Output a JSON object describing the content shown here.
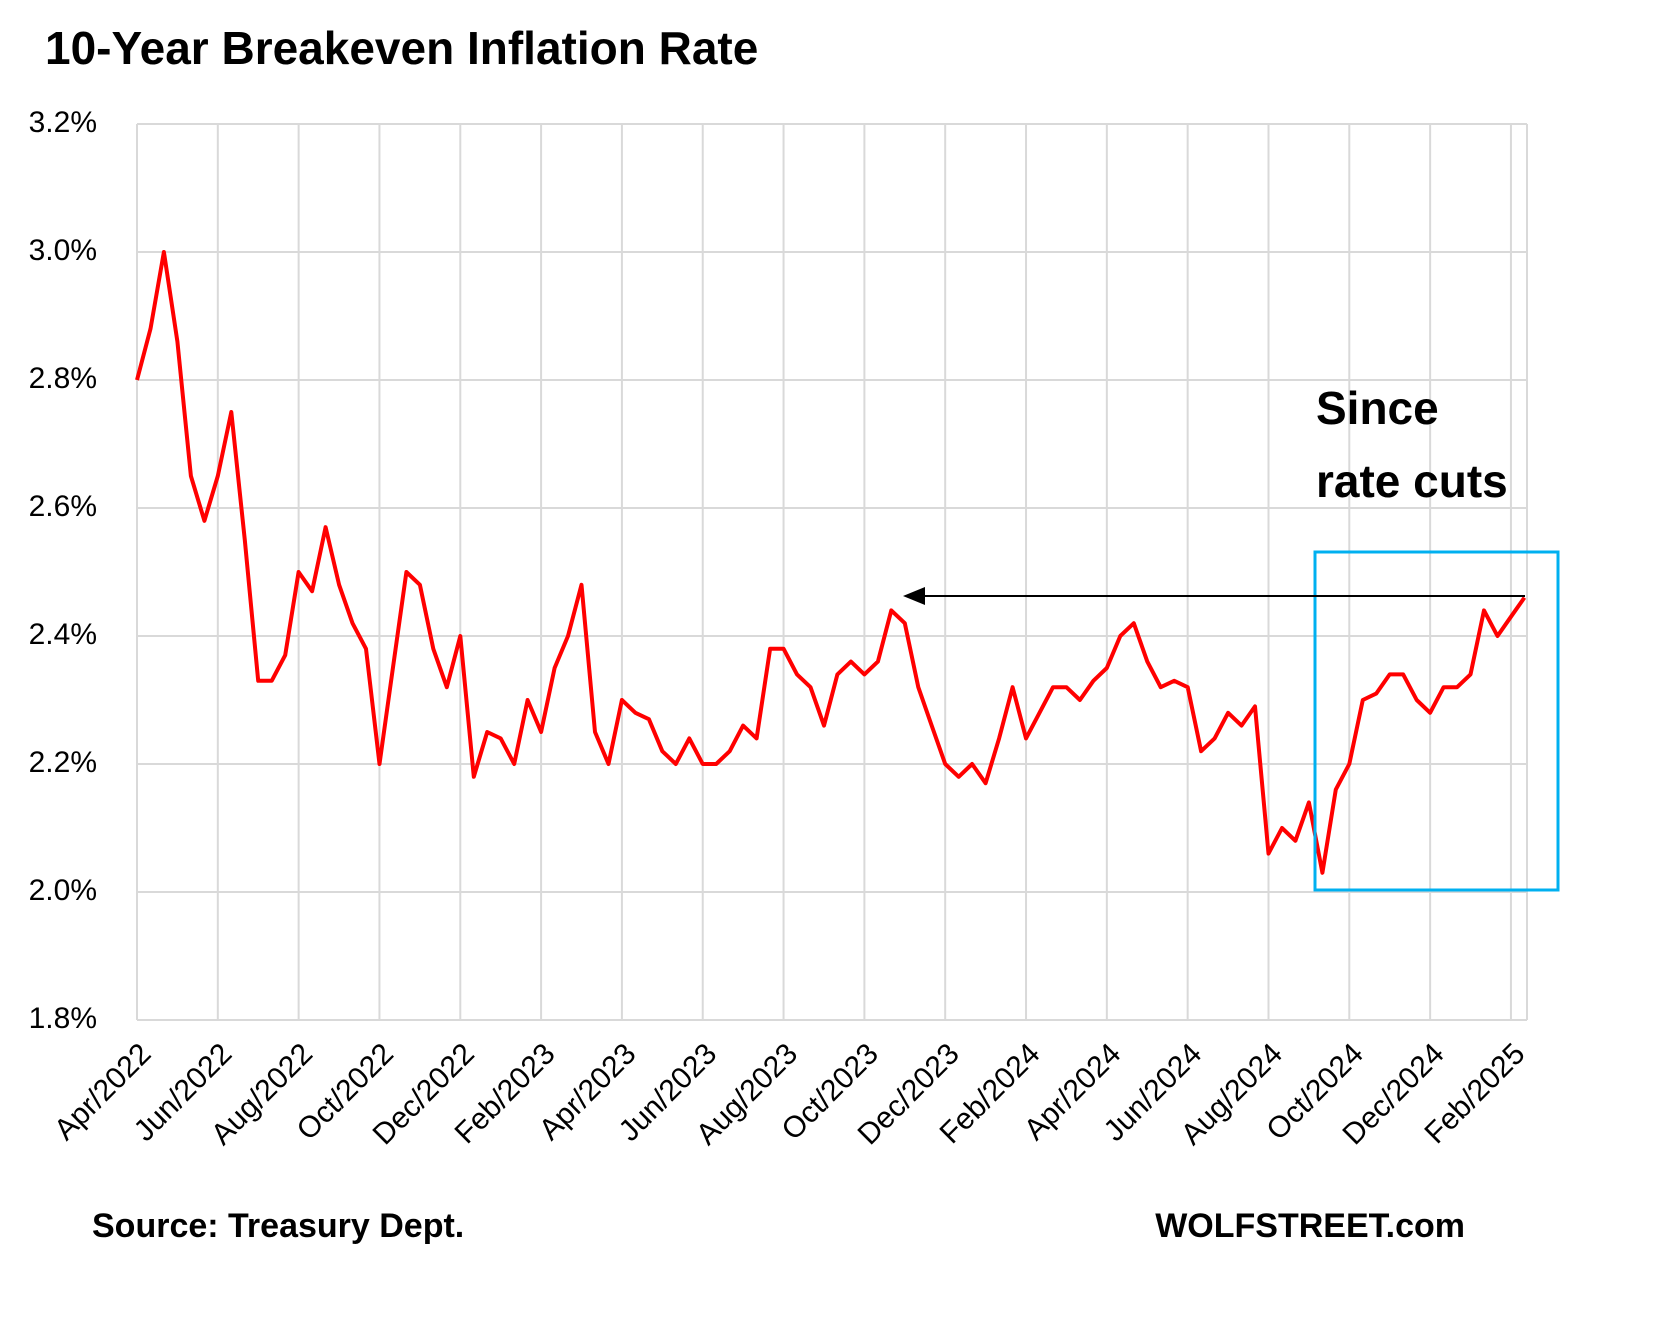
{
  "chart_data": {
    "type": "line",
    "title": "10-Year Breakeven Inflation Rate",
    "source": "Source: Treasury Dept.",
    "credit": "WOLFSTREET.com",
    "annotation": [
      "Since",
      "rate cuts"
    ],
    "grid": true,
    "color": "#ff0000",
    "annotation_color": "#00b0f0",
    "categories": [
      "Apr/2022",
      null,
      null,
      null,
      null,
      null,
      "Jun/2022",
      null,
      null,
      null,
      null,
      null,
      "Aug/2022",
      null,
      null,
      null,
      null,
      null,
      "Oct/2022",
      null,
      null,
      null,
      null,
      null,
      "Dec/2022",
      null,
      null,
      null,
      null,
      null,
      "Feb/2023",
      null,
      null,
      null,
      null,
      null,
      "Apr/2023",
      null,
      null,
      null,
      null,
      null,
      "Jun/2023",
      null,
      null,
      null,
      null,
      null,
      "Aug/2023",
      null,
      null,
      null,
      null,
      null,
      "Oct/2023",
      null,
      null,
      null,
      null,
      null,
      "Dec/2023",
      null,
      null,
      null,
      null,
      null,
      "Feb/2024",
      null,
      null,
      null,
      null,
      null,
      "Apr/2024",
      null,
      null,
      null,
      null,
      null,
      "Jun/2024",
      null,
      null,
      null,
      null,
      null,
      "Aug/2024",
      null,
      null,
      null,
      null,
      null,
      "Oct/2024",
      null,
      null,
      null,
      null,
      null,
      "Dec/2024",
      null,
      null,
      null,
      null,
      null,
      "Feb/2025",
      null
    ],
    "values": [
      2.8,
      2.88,
      3.0,
      2.86,
      2.65,
      2.58,
      2.65,
      2.75,
      2.55,
      2.33,
      2.33,
      2.37,
      2.5,
      2.47,
      2.57,
      2.48,
      2.42,
      2.38,
      2.2,
      2.35,
      2.5,
      2.48,
      2.38,
      2.32,
      2.4,
      2.18,
      2.25,
      2.24,
      2.2,
      2.3,
      2.25,
      2.35,
      2.4,
      2.48,
      2.25,
      2.2,
      2.3,
      2.28,
      2.27,
      2.22,
      2.2,
      2.24,
      2.2,
      2.2,
      2.22,
      2.26,
      2.24,
      2.38,
      2.38,
      2.34,
      2.32,
      2.26,
      2.34,
      2.36,
      2.34,
      2.36,
      2.44,
      2.42,
      2.32,
      2.26,
      2.2,
      2.18,
      2.2,
      2.17,
      2.24,
      2.32,
      2.24,
      2.28,
      2.32,
      2.32,
      2.3,
      2.33,
      2.35,
      2.4,
      2.42,
      2.36,
      2.32,
      2.33,
      2.32,
      2.22,
      2.24,
      2.28,
      2.26,
      2.29,
      2.06,
      2.1,
      2.08,
      2.14,
      2.03,
      2.16,
      2.2,
      2.3,
      2.31,
      2.34,
      2.34,
      2.3,
      2.28,
      2.32,
      2.32,
      2.34,
      2.44,
      2.4,
      2.43,
      2.46
    ],
    "ylim": [
      1.8,
      3.2
    ],
    "yticks": [
      {
        "value": 1.8,
        "label": "1.8%"
      },
      {
        "value": 2.0,
        "label": "2.0%"
      },
      {
        "value": 2.2,
        "label": "2.2%"
      },
      {
        "value": 2.4,
        "label": "2.4%"
      },
      {
        "value": 2.6,
        "label": "2.6%"
      },
      {
        "value": 2.8,
        "label": "2.8%"
      },
      {
        "value": 3.0,
        "label": "3.0%"
      },
      {
        "value": 3.2,
        "label": "3.2%"
      }
    ]
  }
}
